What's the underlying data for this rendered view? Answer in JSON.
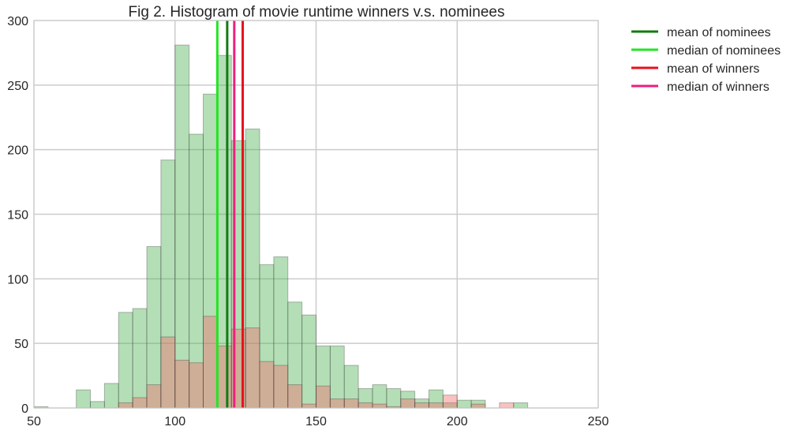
{
  "chart_data": {
    "type": "bar",
    "title": "Fig 2. Histogram of movie runtime winners v.s. nominees",
    "xlabel": "",
    "ylabel": "",
    "xlim": [
      50,
      250
    ],
    "ylim": [
      0,
      300
    ],
    "xticks": [
      50,
      100,
      150,
      200,
      250
    ],
    "yticks": [
      0,
      50,
      100,
      150,
      200,
      250,
      300
    ],
    "grid": true,
    "legend_position": "outside right, top",
    "bin_width": 5,
    "nominees": {
      "color": "#4cb050",
      "bins": [
        {
          "x0": 50,
          "count": 1
        },
        {
          "x0": 55,
          "count": 0
        },
        {
          "x0": 60,
          "count": 0
        },
        {
          "x0": 65,
          "count": 14
        },
        {
          "x0": 70,
          "count": 5
        },
        {
          "x0": 75,
          "count": 19
        },
        {
          "x0": 80,
          "count": 74
        },
        {
          "x0": 85,
          "count": 77
        },
        {
          "x0": 90,
          "count": 125
        },
        {
          "x0": 95,
          "count": 192
        },
        {
          "x0": 100,
          "count": 281
        },
        {
          "x0": 105,
          "count": 212
        },
        {
          "x0": 110,
          "count": 243
        },
        {
          "x0": 115,
          "count": 273
        },
        {
          "x0": 120,
          "count": 207
        },
        {
          "x0": 125,
          "count": 216
        },
        {
          "x0": 130,
          "count": 111
        },
        {
          "x0": 135,
          "count": 117
        },
        {
          "x0": 140,
          "count": 82
        },
        {
          "x0": 145,
          "count": 72
        },
        {
          "x0": 150,
          "count": 48
        },
        {
          "x0": 155,
          "count": 48
        },
        {
          "x0": 160,
          "count": 33
        },
        {
          "x0": 165,
          "count": 15
        },
        {
          "x0": 170,
          "count": 18
        },
        {
          "x0": 175,
          "count": 15
        },
        {
          "x0": 180,
          "count": 13
        },
        {
          "x0": 185,
          "count": 7
        },
        {
          "x0": 190,
          "count": 14
        },
        {
          "x0": 195,
          "count": 4
        },
        {
          "x0": 200,
          "count": 6
        },
        {
          "x0": 205,
          "count": 6
        },
        {
          "x0": 210,
          "count": 0
        },
        {
          "x0": 215,
          "count": 0
        },
        {
          "x0": 220,
          "count": 4
        }
      ]
    },
    "winners": {
      "color": "#f26b6b",
      "bins": [
        {
          "x0": 80,
          "count": 4
        },
        {
          "x0": 85,
          "count": 8
        },
        {
          "x0": 90,
          "count": 18
        },
        {
          "x0": 95,
          "count": 55
        },
        {
          "x0": 100,
          "count": 37
        },
        {
          "x0": 105,
          "count": 35
        },
        {
          "x0": 110,
          "count": 71
        },
        {
          "x0": 115,
          "count": 48
        },
        {
          "x0": 120,
          "count": 61
        },
        {
          "x0": 125,
          "count": 62
        },
        {
          "x0": 130,
          "count": 36
        },
        {
          "x0": 135,
          "count": 33
        },
        {
          "x0": 140,
          "count": 18
        },
        {
          "x0": 145,
          "count": 3
        },
        {
          "x0": 150,
          "count": 17
        },
        {
          "x0": 155,
          "count": 7
        },
        {
          "x0": 160,
          "count": 7
        },
        {
          "x0": 165,
          "count": 4
        },
        {
          "x0": 170,
          "count": 3
        },
        {
          "x0": 175,
          "count": 1
        },
        {
          "x0": 180,
          "count": 7
        },
        {
          "x0": 185,
          "count": 4
        },
        {
          "x0": 190,
          "count": 4
        },
        {
          "x0": 195,
          "count": 10
        },
        {
          "x0": 205,
          "count": 3
        },
        {
          "x0": 215,
          "count": 4
        }
      ]
    },
    "reference_lines": [
      {
        "name": "mean of nominees",
        "x": 118.5,
        "color": "#0f7d0f"
      },
      {
        "name": "median of nominees",
        "x": 115.0,
        "color": "#22e622"
      },
      {
        "name": "mean of winners",
        "x": 124.0,
        "color": "#e6101d"
      },
      {
        "name": "median of winners",
        "x": 121.0,
        "color": "#ec1f7d"
      }
    ]
  }
}
